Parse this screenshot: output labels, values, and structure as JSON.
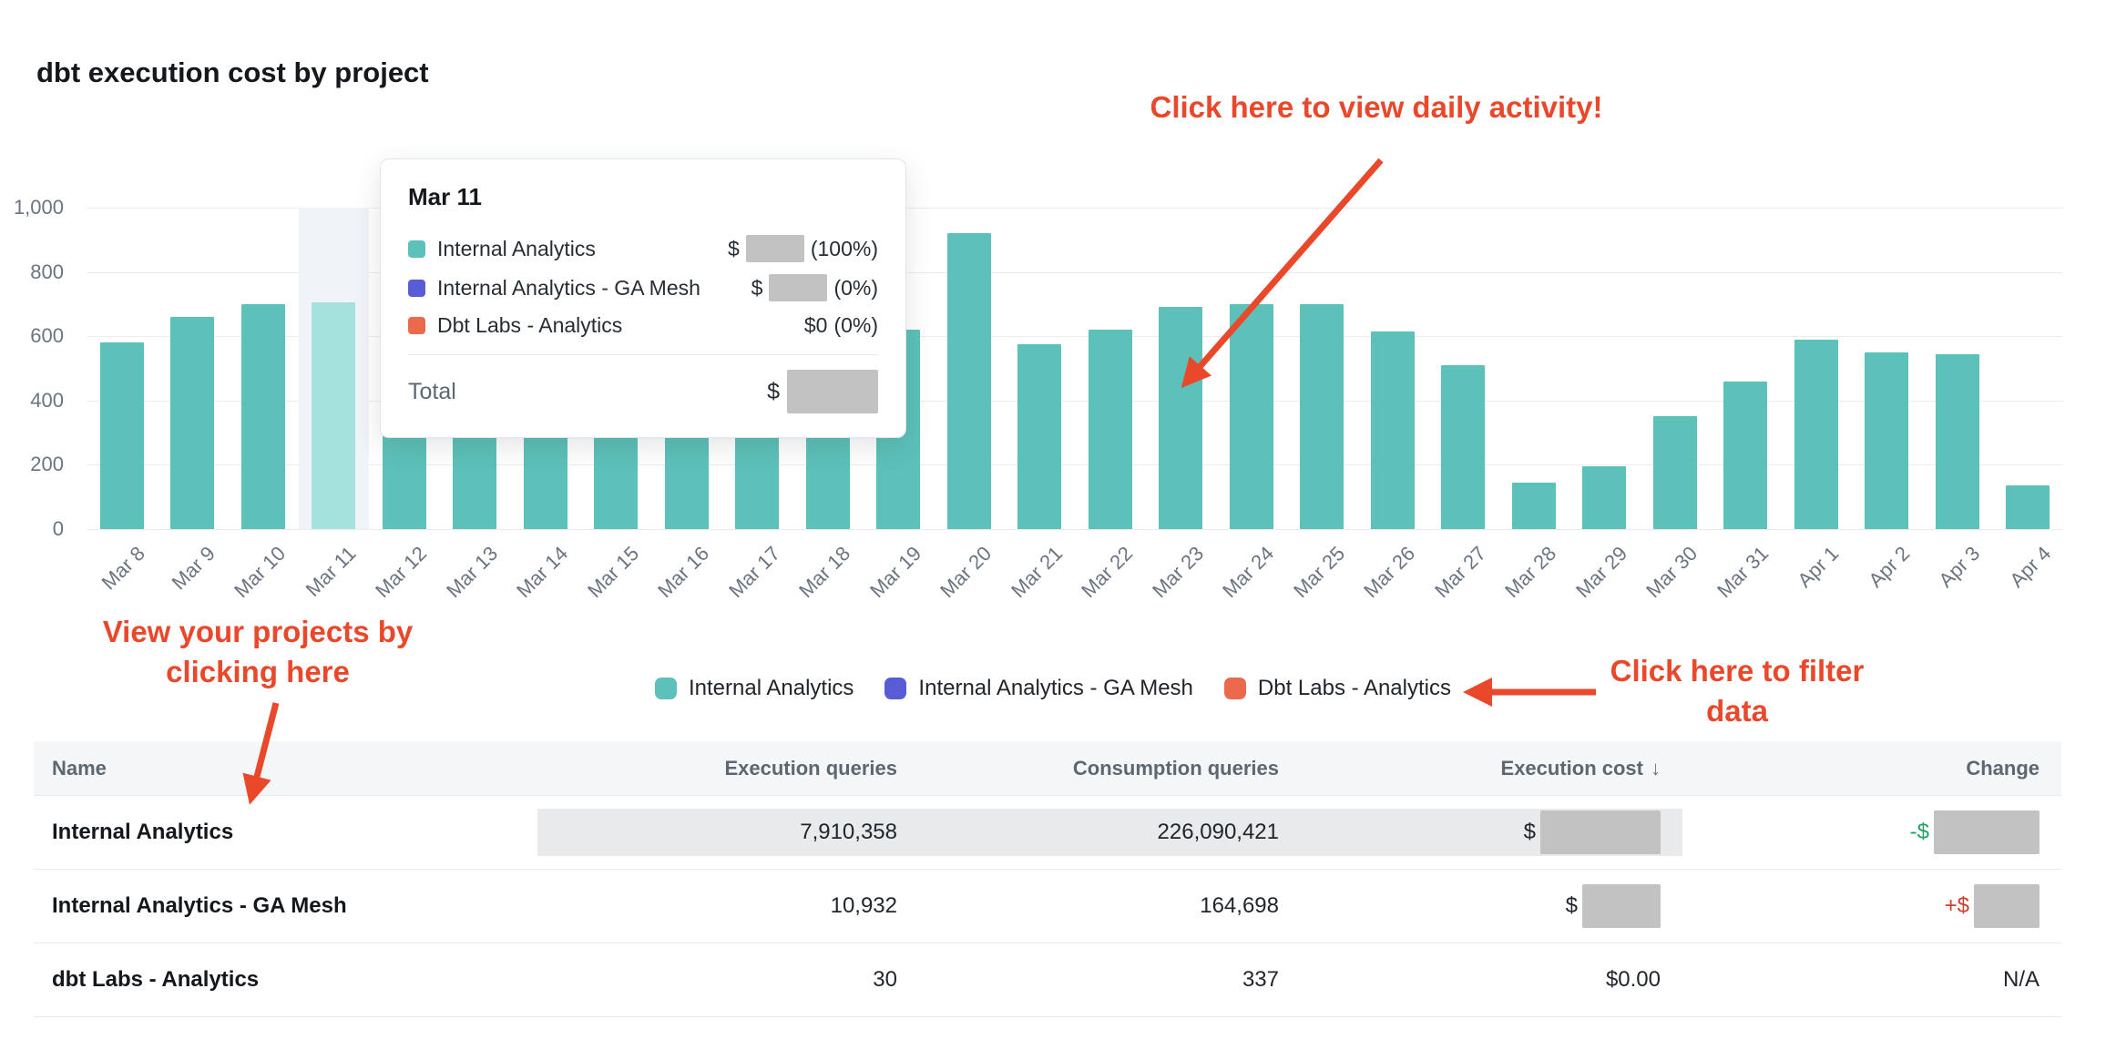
{
  "title": "dbt execution cost by project",
  "theme": {
    "annotation_red": "#e9482b",
    "redaction_gray": "#c2c2c2",
    "row_highlight_gray": "#e8eaeb",
    "negative_green": "#23a164",
    "positive_red": "#cf3f2e"
  },
  "chart_data": {
    "type": "bar",
    "title": "dbt execution cost by project",
    "xlabel": "",
    "ylabel": "",
    "ylim": [
      0,
      1000
    ],
    "ytick_labels": [
      "1,000",
      "800",
      "600",
      "400",
      "200",
      "0"
    ],
    "grid": true,
    "legend_position": "bottom",
    "bar_color": "#5cc1b9",
    "highlight_color": "#a5e2dd",
    "highlight_band_color": "#f0f3f8",
    "highlighted_index": 3,
    "x": [
      "Mar 8",
      "Mar 9",
      "Mar 10",
      "Mar 11",
      "Mar 12",
      "Mar 13",
      "Mar 14",
      "Mar 15",
      "Mar 16",
      "Mar 17",
      "Mar 18",
      "Mar 19",
      "Mar 20",
      "Mar 21",
      "Mar 22",
      "Mar 23",
      "Mar 24",
      "Mar 25",
      "Mar 26",
      "Mar 27",
      "Mar 28",
      "Mar 29",
      "Mar 30",
      "Mar 31",
      "Apr 1",
      "Apr 2",
      "Apr 3",
      "Apr 4"
    ],
    "values": [
      580,
      660,
      700,
      705,
      290,
      290,
      290,
      290,
      290,
      290,
      290,
      620,
      920,
      575,
      620,
      690,
      700,
      700,
      615,
      510,
      145,
      195,
      350,
      460,
      590,
      550,
      545,
      135
    ]
  },
  "tooltip": {
    "title": "Mar 11",
    "rows": [
      {
        "swatch": "#5cc1b9",
        "label": "Internal Analytics",
        "value_prefix": "$",
        "value_redacted": true,
        "value_suffix": "(100%)"
      },
      {
        "swatch": "#585dd6",
        "label": "Internal Analytics - GA Mesh",
        "value_prefix": "$",
        "value_redacted": true,
        "value_suffix": "(0%)"
      },
      {
        "swatch": "#eb6a4b",
        "label": "Dbt Labs - Analytics",
        "value_prefix": "",
        "value_text": "$0",
        "value_redacted": false,
        "value_suffix": "(0%)"
      }
    ],
    "total_label": "Total",
    "total_prefix": "$",
    "total_redacted": true
  },
  "legend": {
    "items": [
      {
        "label": "Internal Analytics",
        "color": "#5cc1b9"
      },
      {
        "label": "Internal Analytics - GA Mesh",
        "color": "#585dd6"
      },
      {
        "label": "Dbt Labs - Analytics",
        "color": "#eb6a4b"
      }
    ]
  },
  "table": {
    "columns": [
      "Name",
      "Execution queries",
      "Consumption queries",
      "Execution cost",
      "Change"
    ],
    "sort_column": "Execution cost",
    "sort_icon": "↓",
    "rows": [
      {
        "name": "Internal Analytics",
        "execution_queries": "7,910,358",
        "consumption_queries": "226,090,421",
        "execution_cost": {
          "prefix": "$",
          "redacted": true
        },
        "change": {
          "prefix": "-$",
          "prefix_color": "#23a164",
          "redacted": true
        },
        "highlighted": true
      },
      {
        "name": "Internal Analytics - GA Mesh",
        "execution_queries": "10,932",
        "consumption_queries": "164,698",
        "execution_cost": {
          "prefix": "$",
          "redacted": true
        },
        "change": {
          "prefix": "+$",
          "prefix_color": "#cf3f2e",
          "redacted": true
        },
        "highlighted": false
      },
      {
        "name": "dbt Labs - Analytics",
        "execution_queries": "30",
        "consumption_queries": "337",
        "execution_cost": {
          "text": "$0.00"
        },
        "change": {
          "text": "N/A"
        },
        "highlighted": false
      }
    ]
  },
  "annotations": {
    "color": "#e9482b",
    "daily_activity": {
      "text": "Click here to view daily activity!"
    },
    "projects": {
      "line1": "View your projects by",
      "line2": "clicking here"
    },
    "filter": {
      "line1": "Click here to filter",
      "line2": "data"
    }
  }
}
